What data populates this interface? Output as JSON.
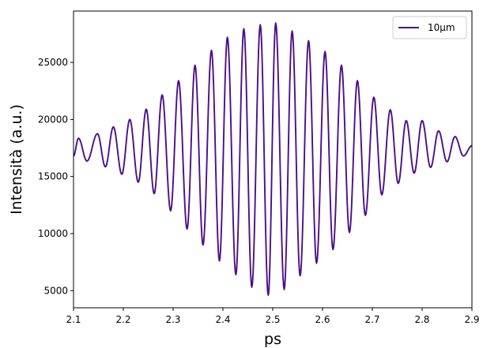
{
  "chart_data": {
    "type": "line",
    "xlabel": "ps",
    "ylabel": "Intensità (a.u.)",
    "xlim": [
      2.1,
      2.9
    ],
    "ylim": [
      3500,
      29500
    ],
    "xticks": [
      2.1,
      2.2,
      2.3,
      2.4,
      2.5,
      2.6,
      2.7,
      2.8,
      2.9
    ],
    "xtick_labels": [
      "2.1",
      "2.2",
      "2.3",
      "2.4",
      "2.5",
      "2.6",
      "2.7",
      "2.8",
      "2.9"
    ],
    "yticks": [
      5000,
      10000,
      15000,
      20000,
      25000
    ],
    "ytick_labels": [
      "5000",
      "10000",
      "15000",
      "20000",
      "25000"
    ],
    "grid": false,
    "legend_position": "top-right",
    "series": [
      {
        "name": "10μm",
        "color": "#4b0f8a",
        "x": [
          2.1,
          2.11,
          2.127,
          2.148,
          2.164,
          2.18,
          2.197,
          2.213,
          2.23,
          2.246,
          2.262,
          2.278,
          2.295,
          2.311,
          2.328,
          2.344,
          2.36,
          2.377,
          2.393,
          2.409,
          2.426,
          2.442,
          2.458,
          2.475,
          2.491,
          2.506,
          2.523,
          2.539,
          2.555,
          2.572,
          2.588,
          2.605,
          2.621,
          2.638,
          2.654,
          2.67,
          2.686,
          2.703,
          2.719,
          2.736,
          2.752,
          2.768,
          2.784,
          2.8,
          2.817,
          2.833,
          2.85,
          2.866,
          2.883,
          2.9
        ],
        "y": [
          16800,
          18350,
          16350,
          18750,
          15850,
          19350,
          15200,
          20000,
          14500,
          20900,
          13500,
          22150,
          12000,
          23400,
          10400,
          24750,
          9000,
          26050,
          7600,
          27200,
          6400,
          27950,
          5300,
          28300,
          4600,
          28450,
          5100,
          27750,
          6300,
          26900,
          7400,
          25950,
          8600,
          24750,
          10100,
          23400,
          11600,
          21950,
          13400,
          20850,
          14400,
          19900,
          15300,
          19900,
          15800,
          19000,
          16300,
          18500,
          16800,
          17700
        ]
      }
    ]
  }
}
